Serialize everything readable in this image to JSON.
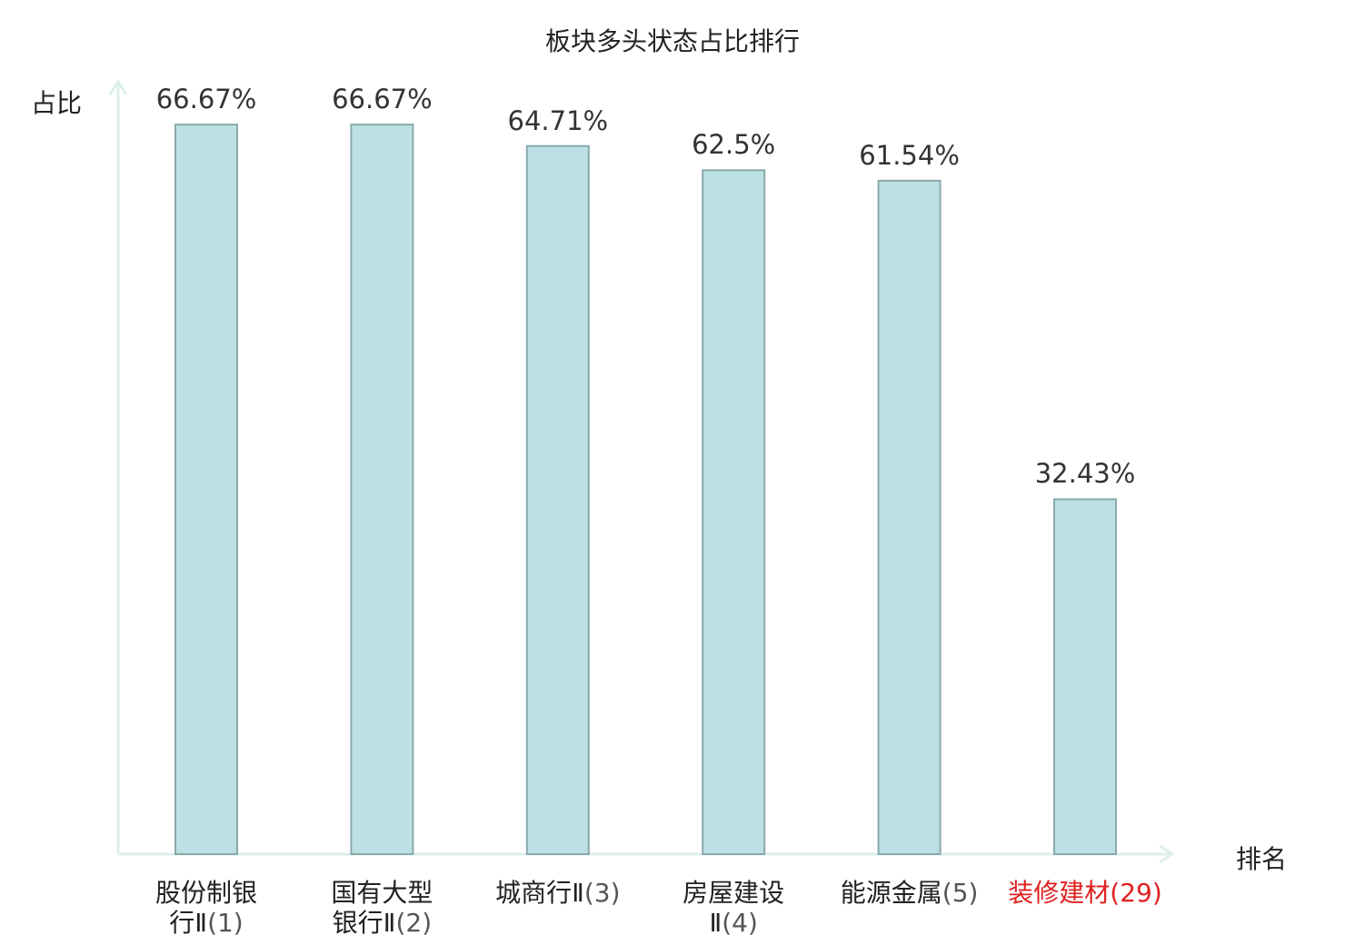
{
  "chart_data": {
    "type": "bar",
    "title": "板块多头状态占比排行",
    "ylabel": "占比",
    "xlabel": "排名",
    "ylim": [
      0,
      70
    ],
    "grid": false,
    "categories": [
      {
        "name_lines": [
          "股份制银",
          "行Ⅱ"
        ],
        "rank": "(1)"
      },
      {
        "name_lines": [
          "国有大型",
          "银行Ⅱ"
        ],
        "rank": "(2)"
      },
      {
        "name_lines": [
          "城商行Ⅱ"
        ],
        "rank": "(3)"
      },
      {
        "name_lines": [
          "房屋建设",
          "Ⅱ"
        ],
        "rank": "(4)"
      },
      {
        "name_lines": [
          "能源金属"
        ],
        "rank": "(5)"
      },
      {
        "name_lines": [
          "装修建材"
        ],
        "rank": "(29)"
      }
    ],
    "values": [
      66.67,
      66.67,
      64.71,
      62.5,
      61.54,
      32.43
    ],
    "value_labels": [
      "66.67%",
      "66.67%",
      "64.71%",
      "62.5%",
      "61.54%",
      "32.43%"
    ],
    "highlight_index": 5,
    "colors": {
      "bar_fill": "#bce0e3",
      "bar_stroke": "#8aa9ab",
      "axis": "#dcefeb",
      "highlight_text": "#e02020"
    }
  }
}
